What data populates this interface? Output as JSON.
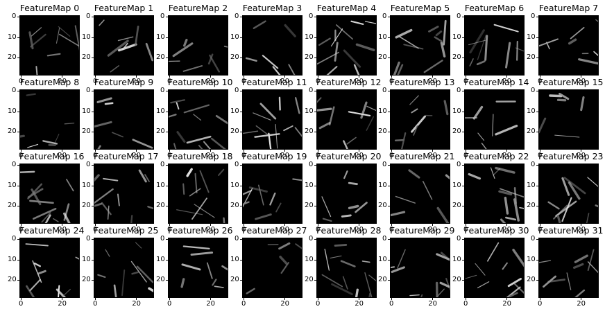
{
  "figure": {
    "titles": [
      "FeatureMap 0",
      "FeatureMap 1",
      "FeatureMap 2",
      "FeatureMap 3",
      "FeatureMap 4",
      "FeatureMap 5",
      "FeatureMap 6",
      "FeatureMap 7",
      "FeatureMap 8",
      "FeatureMap 9",
      "FeatureMap 10",
      "FeatureMap 11",
      "FeatureMap 12",
      "FeatureMap 13",
      "FeatureMap 14",
      "FeatureMap 15",
      "FeatureMap 16",
      "FeatureMap 17",
      "FeatureMap 18",
      "FeatureMap 19",
      "FeatureMap 20",
      "FeatureMap 21",
      "FeatureMap 22",
      "FeatureMap 23",
      "FeatureMap 24",
      "FeatureMap 25",
      "FeatureMap 26",
      "FeatureMap 27",
      "FeatureMap 28",
      "FeatureMap 29",
      "FeatureMap 30",
      "FeatureMap 31"
    ],
    "y_ticks": [
      "0",
      "10",
      "20"
    ],
    "x_ticks": [
      "0",
      "20"
    ],
    "colormap": "gray",
    "background_color": "#000000",
    "foreground_color": "#ffffff"
  }
}
